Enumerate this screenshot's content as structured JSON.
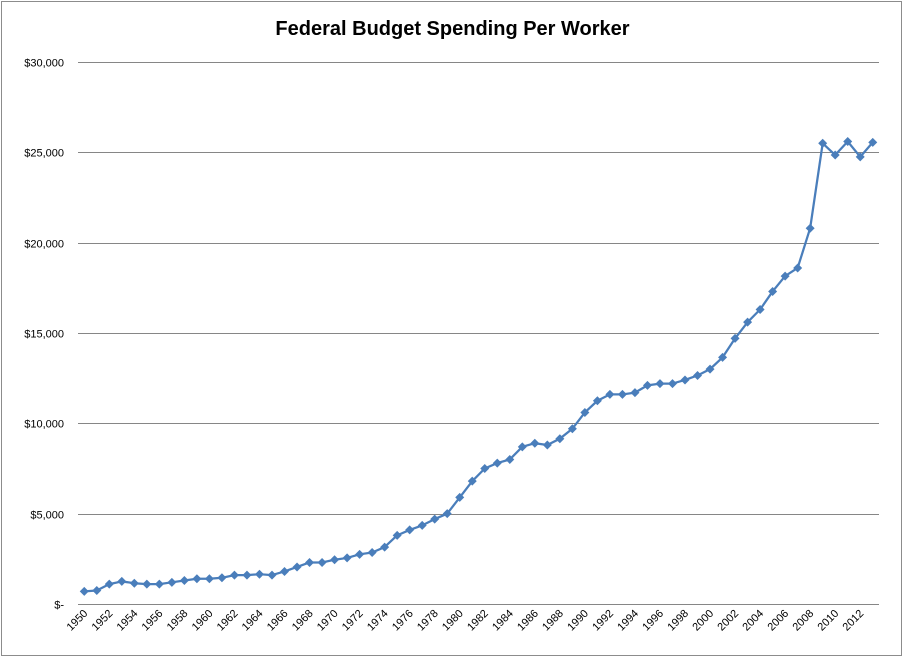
{
  "chart_data": {
    "type": "line",
    "title": "Federal Budget Spending Per Worker",
    "xlabel": "",
    "ylabel": "",
    "ylim": [
      0,
      30000
    ],
    "y_ticks": [
      0,
      5000,
      10000,
      15000,
      20000,
      25000,
      30000
    ],
    "y_tick_labels": [
      "$-",
      "$5,000",
      "$10,000",
      "$15,000",
      "$20,000",
      "$25,000",
      "$30,000"
    ],
    "x_tick_labels": [
      "1950",
      "1952",
      "1954",
      "1956",
      "1958",
      "1960",
      "1962",
      "1964",
      "1966",
      "1968",
      "1970",
      "1972",
      "1974",
      "1976",
      "1978",
      "1980",
      "1982",
      "1984",
      "1986",
      "1988",
      "1990",
      "1992",
      "1994",
      "1996",
      "1998",
      "2000",
      "2002",
      "2004",
      "2006",
      "2008",
      "2010",
      "2012"
    ],
    "grid": true,
    "legend": "none",
    "marker": "diamond",
    "colors": {
      "series": "#4a7ebb",
      "grid": "#868686"
    },
    "x": [
      1950,
      1951,
      1952,
      1953,
      1954,
      1955,
      1956,
      1957,
      1958,
      1959,
      1960,
      1961,
      1962,
      1963,
      1964,
      1965,
      1966,
      1967,
      1968,
      1969,
      1970,
      1971,
      1972,
      1973,
      1974,
      1975,
      1976,
      1977,
      1978,
      1979,
      1980,
      1981,
      1982,
      1983,
      1984,
      1985,
      1986,
      1987,
      1988,
      1989,
      1990,
      1991,
      1992,
      1993,
      1994,
      1995,
      1996,
      1997,
      1998,
      1999,
      2000,
      2001,
      2002,
      2003,
      2004,
      2005,
      2006,
      2007,
      2008,
      2009,
      2010,
      2011,
      2012,
      2013
    ],
    "series": [
      {
        "values": [
          700,
          750,
          1100,
          1250,
          1150,
          1100,
          1100,
          1200,
          1300,
          1400,
          1400,
          1450,
          1600,
          1600,
          1650,
          1600,
          1800,
          2050,
          2300,
          2300,
          2450,
          2550,
          2750,
          2850,
          3150,
          3800,
          4100,
          4350,
          4700,
          5000,
          5900,
          6800,
          7500,
          7800,
          8000,
          8700,
          8900,
          8800,
          9150,
          9700,
          10600,
          11250,
          11600,
          11600,
          11700,
          12100,
          12200,
          12200,
          12400,
          12650,
          13000,
          13650,
          14700,
          15600,
          16300,
          17300,
          18150,
          18600,
          20800,
          25500,
          24850,
          25600,
          24750,
          25550
        ]
      }
    ]
  }
}
